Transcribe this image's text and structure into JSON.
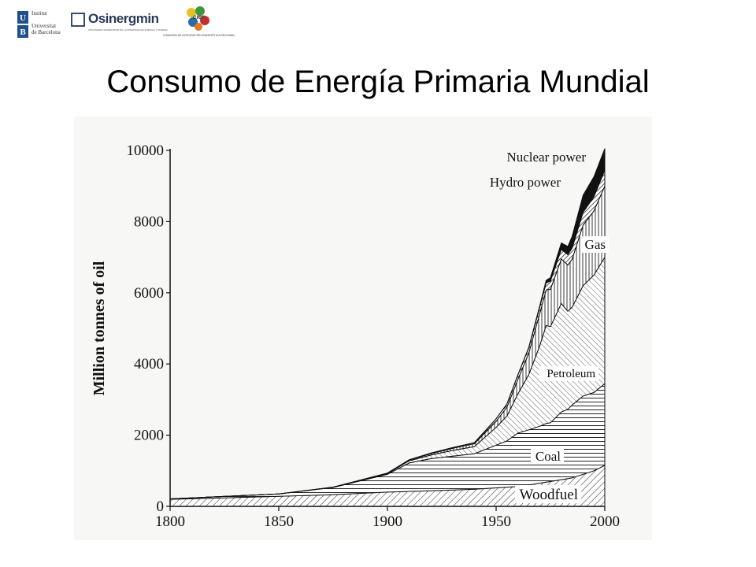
{
  "header": {
    "title": "Consumo de Energía Primaria Mundial",
    "logos": {
      "ub_lines": [
        "Institut",
        "Universitat",
        "de Barcelona"
      ],
      "ub_letters": [
        "U",
        "B"
      ],
      "osinergmin_name": "Osinergmin",
      "osinergmin_sub": "ORGANISMO SUPERVISOR DE LA INVERSIÓN EN ENERGÍA Y MINERÍA",
      "cier_name": "cier",
      "cier_sub": "COMISIÓN DE INTEGRACIÓN ENERGÉTICA REGIONAL"
    }
  },
  "chart_data": {
    "type": "area",
    "stacked": true,
    "ylabel": "Million tonnes of oil",
    "xlabel": "",
    "xlim": [
      1800,
      2000
    ],
    "ylim": [
      0,
      10000
    ],
    "x_ticks": [
      "1800",
      "1850",
      "1900",
      "1950",
      "2000"
    ],
    "y_ticks": [
      "0",
      "2000",
      "4000",
      "6000",
      "8000",
      "10000"
    ],
    "x": [
      1800,
      1850,
      1875,
      1900,
      1910,
      1920,
      1930,
      1940,
      1950,
      1955,
      1960,
      1965,
      1970,
      1973,
      1975,
      1980,
      1983,
      1985,
      1990,
      1995,
      2000
    ],
    "series": [
      {
        "name": "Woodfuel",
        "values": [
          200,
          280,
          330,
          400,
          420,
          440,
          460,
          480,
          520,
          540,
          560,
          600,
          650,
          680,
          700,
          750,
          780,
          800,
          900,
          1000,
          1150
        ]
      },
      {
        "name": "Coal",
        "values": [
          10,
          70,
          200,
          500,
          800,
          900,
          950,
          1000,
          1200,
          1300,
          1500,
          1550,
          1600,
          1650,
          1650,
          1900,
          1950,
          2050,
          2200,
          2200,
          2300
        ]
      },
      {
        "name": "Petroleum",
        "values": [
          0,
          0,
          10,
          20,
          60,
          100,
          160,
          200,
          500,
          700,
          1100,
          1550,
          2250,
          2750,
          2700,
          3050,
          2750,
          2750,
          3100,
          3300,
          3550
        ]
      },
      {
        "name": "Gas",
        "values": [
          0,
          0,
          0,
          10,
          20,
          40,
          60,
          80,
          170,
          250,
          400,
          600,
          900,
          1000,
          1050,
          1250,
          1300,
          1350,
          1700,
          1800,
          2000
        ]
      },
      {
        "name": "Hydro power",
        "values": [
          0,
          0,
          0,
          5,
          10,
          15,
          20,
          30,
          70,
          90,
          130,
          150,
          180,
          200,
          230,
          270,
          290,
          310,
          360,
          400,
          450
        ]
      },
      {
        "name": "Nuclear power",
        "values": [
          0,
          0,
          0,
          0,
          0,
          0,
          0,
          0,
          0,
          0,
          5,
          15,
          40,
          70,
          100,
          180,
          230,
          330,
          480,
          560,
          600
        ]
      }
    ],
    "annotations": [
      "Nuclear power",
      "Hydro power",
      "Gas",
      "Petroleum",
      "Coal",
      "Woodfuel"
    ],
    "grid": false,
    "legend": "inline labels"
  }
}
